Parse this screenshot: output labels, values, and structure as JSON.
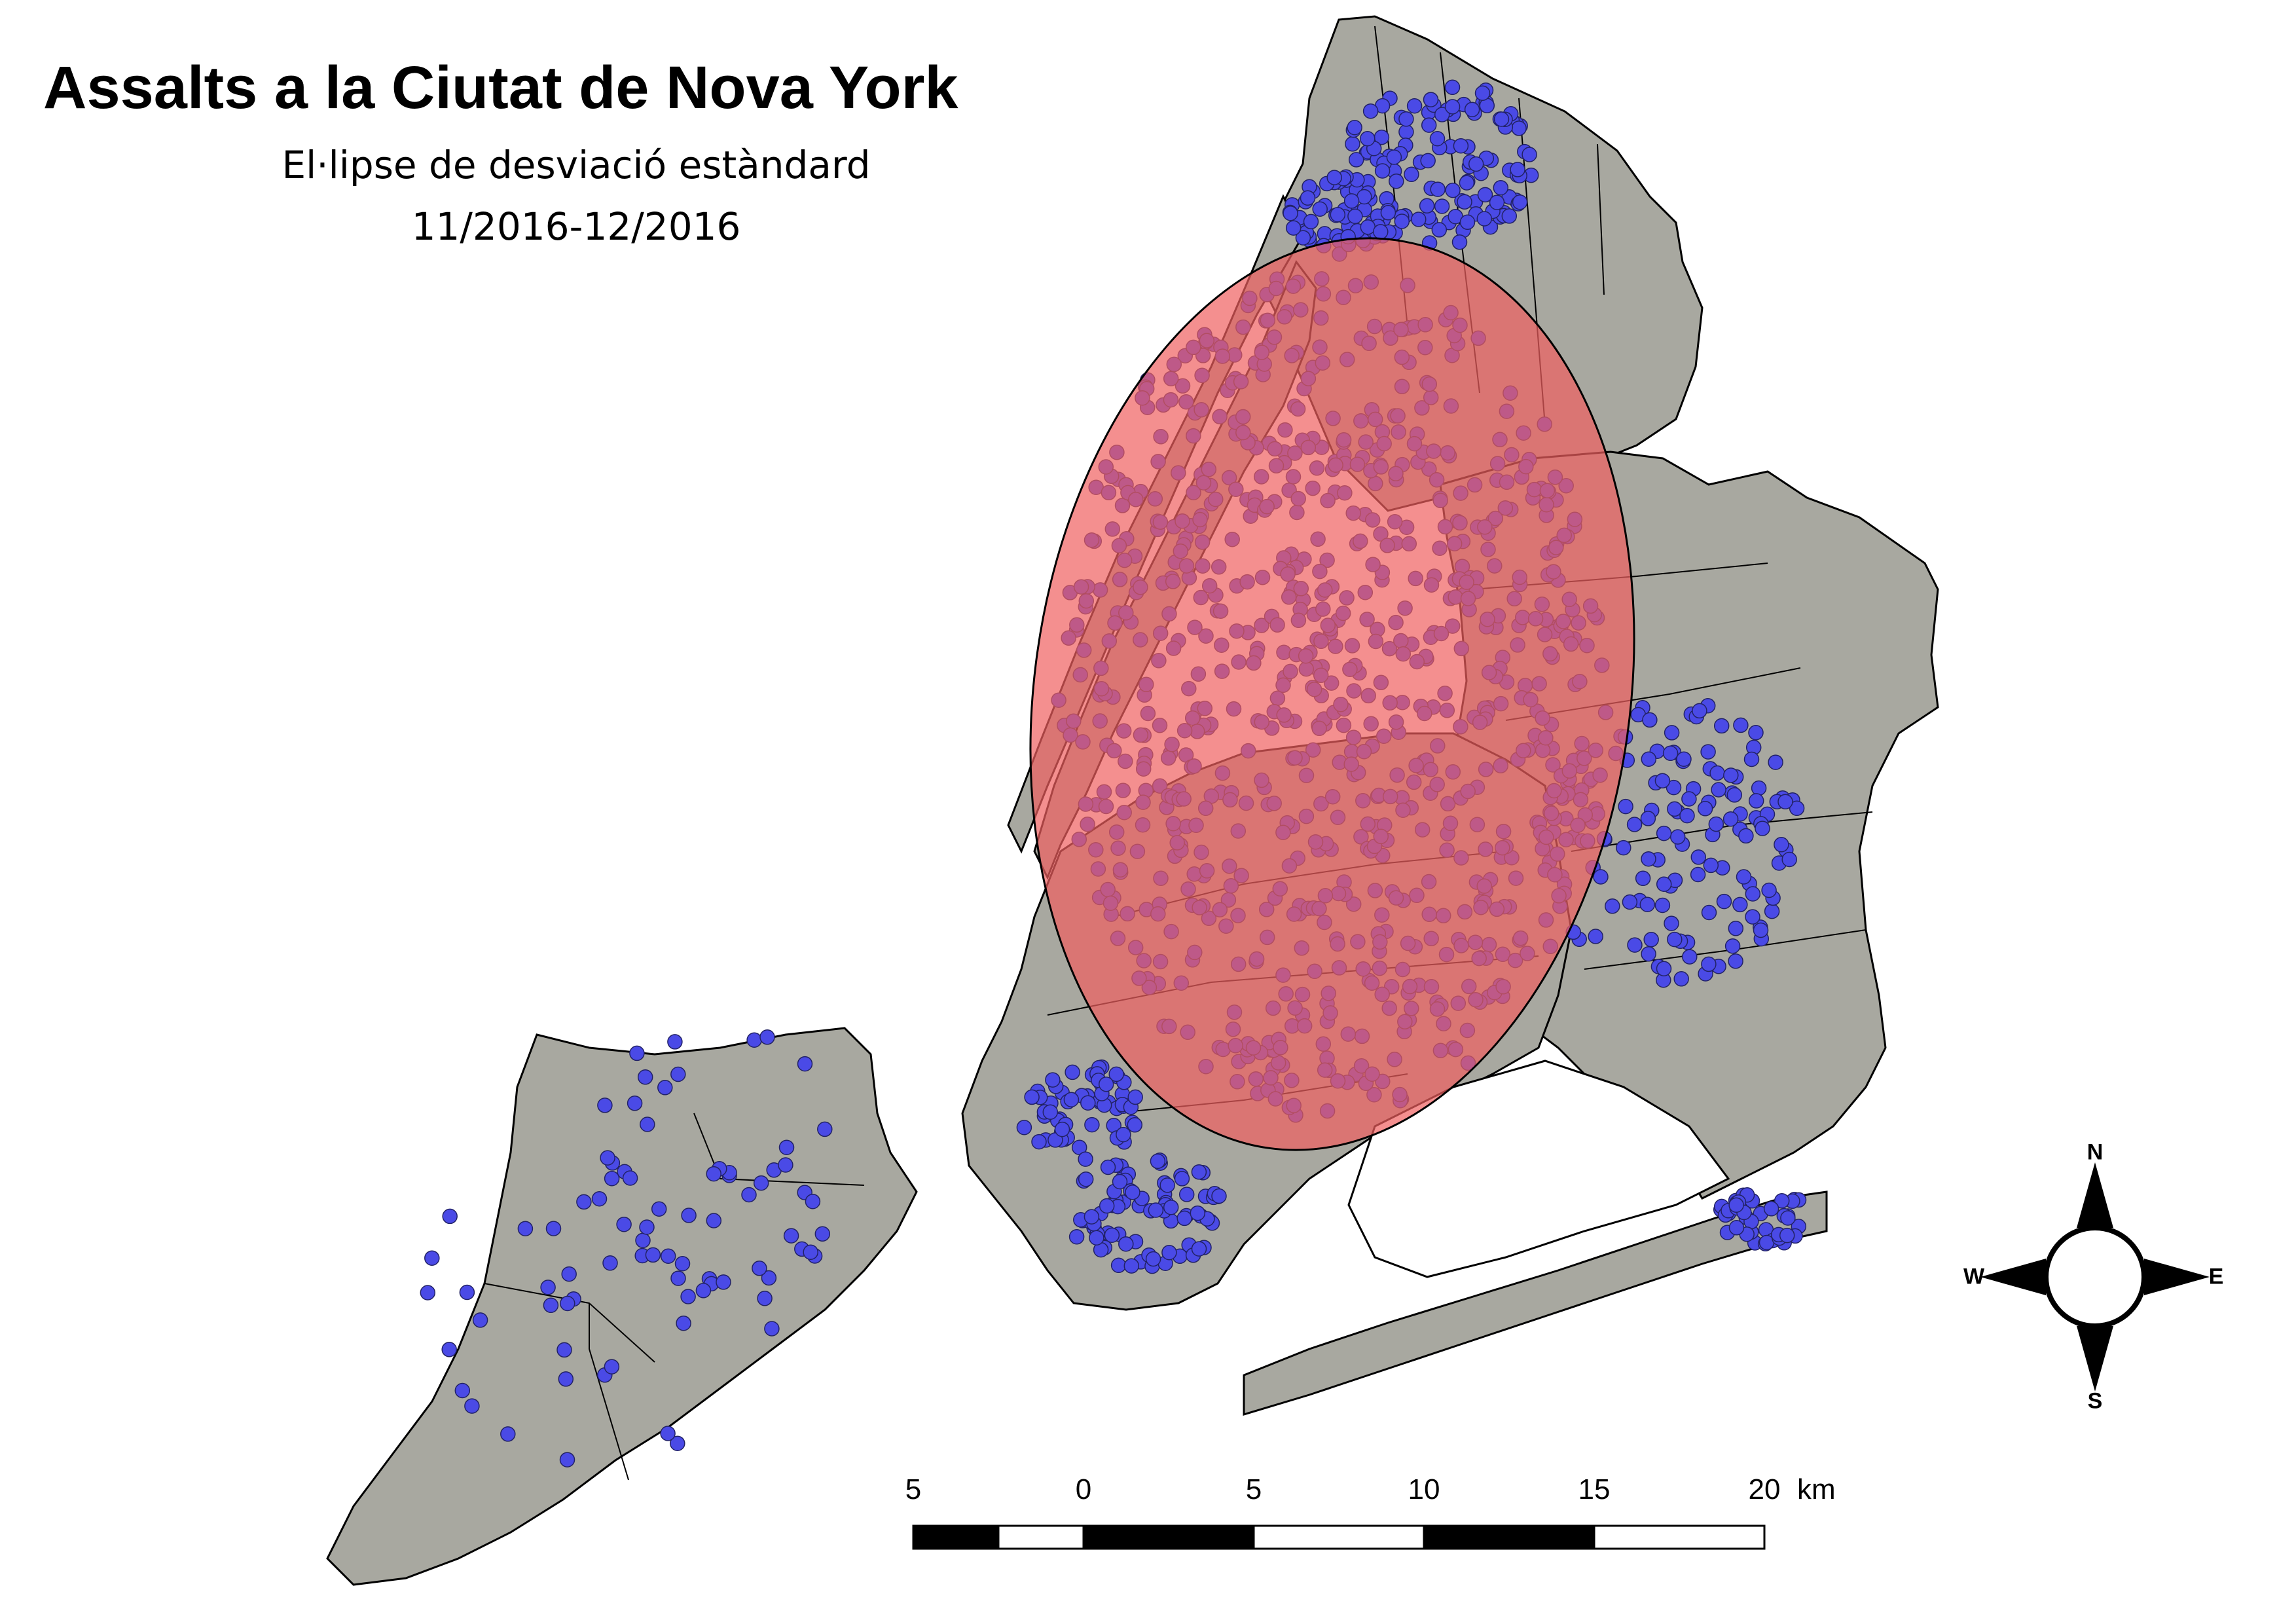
{
  "title": "Assalts a la Ciutat de Nova York",
  "subtitle": "El·lipse de desviació estàndard",
  "period": "11/2016-12/2016",
  "scale_bar": {
    "ticks": [
      "5",
      "0",
      "5",
      "10",
      "15",
      "20"
    ],
    "unit": "km"
  },
  "compass": {
    "n": "N",
    "s": "S",
    "e": "E",
    "w": "W"
  },
  "colors": {
    "land": "#a8a8a0",
    "border": "#000000",
    "points": "#4a4ae6",
    "ellipse_fill": "#f06060",
    "ellipse_opacity": 0.7
  },
  "icons": [
    "compass-rose-icon"
  ]
}
